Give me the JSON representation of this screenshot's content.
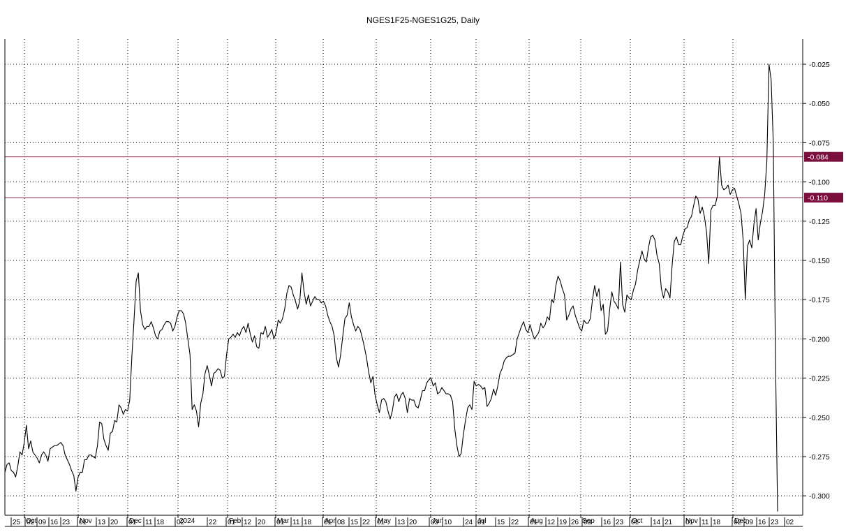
{
  "title": "NGES1F25-NGES1G25, Daily",
  "colors": {
    "line": "#000000",
    "grid": "#000000",
    "marker_line": "#8b2a52",
    "marker_fill": "#7a0f3d",
    "marker_text": "#ffffff"
  },
  "chart_data": {
    "type": "line",
    "title": "NGES1F25-NGES1G25, Daily",
    "xlabel": "",
    "ylabel": "",
    "ylim": [
      -0.31,
      -0.01
    ],
    "y_ticks": [
      "-0.025",
      "-0.050",
      "-0.075",
      "-0.100",
      "-0.125",
      "-0.150",
      "-0.175",
      "-0.200",
      "-0.225",
      "-0.250",
      "-0.275",
      "-0.300"
    ],
    "grid": true,
    "month_labels": [
      "Oct",
      "Nov",
      "Dec",
      "2024",
      "Feb",
      "Mar",
      "Apr",
      "May",
      "Jun",
      "Jul",
      "Aug",
      "Sep",
      "Oct",
      "Nov",
      "Dec"
    ],
    "day_labels": [
      "25",
      "02",
      "09",
      "16",
      "23",
      "01",
      "13",
      "20",
      "01",
      "11",
      "18",
      "02",
      "22",
      "01",
      "12",
      "20",
      "01",
      "11",
      "18",
      "01",
      "08",
      "15",
      "22",
      "01",
      "13",
      "20",
      "03",
      "10",
      "24",
      "01",
      "15",
      "22",
      "01",
      "12",
      "19",
      "26",
      "03",
      "16",
      "23",
      "01",
      "14",
      "21",
      "01",
      "11",
      "18",
      "02",
      "09",
      "16",
      "23",
      "02"
    ],
    "horizontal_markers": [
      {
        "label": "-0.084",
        "value": -0.084
      },
      {
        "label": "-0.110",
        "value": -0.11
      }
    ],
    "series": [
      {
        "values": [
          -0.285,
          -0.28,
          -0.279,
          -0.284,
          -0.285,
          -0.288,
          -0.281,
          -0.272,
          -0.274,
          -0.266,
          -0.255,
          -0.27,
          -0.265,
          -0.272,
          -0.274,
          -0.276,
          -0.279,
          -0.274,
          -0.272,
          -0.274,
          -0.278,
          -0.27,
          -0.269,
          -0.268,
          -0.268,
          -0.267,
          -0.266,
          -0.268,
          -0.274,
          -0.277,
          -0.28,
          -0.284,
          -0.287,
          -0.297,
          -0.288,
          -0.285,
          -0.285,
          -0.277,
          -0.277,
          -0.274,
          -0.274,
          -0.275,
          -0.276,
          -0.268,
          -0.253,
          -0.254,
          -0.264,
          -0.268,
          -0.271,
          -0.26,
          -0.259,
          -0.252,
          -0.253,
          -0.242,
          -0.244,
          -0.248,
          -0.245,
          -0.246,
          -0.239,
          -0.211,
          -0.188,
          -0.163,
          -0.158,
          -0.182,
          -0.191,
          -0.194,
          -0.192,
          -0.192,
          -0.189,
          -0.193,
          -0.198,
          -0.2,
          -0.195,
          -0.194,
          -0.191,
          -0.189,
          -0.189,
          -0.19,
          -0.195,
          -0.192,
          -0.186,
          -0.182,
          -0.182,
          -0.184,
          -0.19,
          -0.2,
          -0.21,
          -0.245,
          -0.242,
          -0.246,
          -0.256,
          -0.241,
          -0.235,
          -0.222,
          -0.217,
          -0.223,
          -0.23,
          -0.222,
          -0.221,
          -0.219,
          -0.22,
          -0.225,
          -0.224,
          -0.21,
          -0.2,
          -0.199,
          -0.197,
          -0.199,
          -0.196,
          -0.198,
          -0.194,
          -0.192,
          -0.196,
          -0.19,
          -0.197,
          -0.202,
          -0.198,
          -0.205,
          -0.206,
          -0.196,
          -0.197,
          -0.192,
          -0.199,
          -0.197,
          -0.194,
          -0.2,
          -0.196,
          -0.188,
          -0.19,
          -0.187,
          -0.181,
          -0.171,
          -0.166,
          -0.167,
          -0.172,
          -0.176,
          -0.181,
          -0.176,
          -0.158,
          -0.17,
          -0.178,
          -0.172,
          -0.179,
          -0.176,
          -0.173,
          -0.175,
          -0.175,
          -0.177,
          -0.176,
          -0.179,
          -0.185,
          -0.189,
          -0.192,
          -0.198,
          -0.212,
          -0.218,
          -0.21,
          -0.198,
          -0.187,
          -0.185,
          -0.177,
          -0.186,
          -0.191,
          -0.195,
          -0.192,
          -0.194,
          -0.199,
          -0.205,
          -0.212,
          -0.221,
          -0.228,
          -0.224,
          -0.236,
          -0.242,
          -0.247,
          -0.239,
          -0.238,
          -0.24,
          -0.246,
          -0.251,
          -0.246,
          -0.237,
          -0.235,
          -0.24,
          -0.236,
          -0.234,
          -0.238,
          -0.247,
          -0.238,
          -0.239,
          -0.239,
          -0.243,
          -0.244,
          -0.239,
          -0.233,
          -0.233,
          -0.228,
          -0.226,
          -0.225,
          -0.23,
          -0.228,
          -0.235,
          -0.234,
          -0.231,
          -0.233,
          -0.235,
          -0.235,
          -0.236,
          -0.24,
          -0.257,
          -0.268,
          -0.275,
          -0.273,
          -0.261,
          -0.252,
          -0.244,
          -0.242,
          -0.245,
          -0.227,
          -0.23,
          -0.229,
          -0.23,
          -0.232,
          -0.231,
          -0.243,
          -0.241,
          -0.238,
          -0.232,
          -0.236,
          -0.23,
          -0.222,
          -0.219,
          -0.214,
          -0.212,
          -0.211,
          -0.211,
          -0.21,
          -0.209,
          -0.2,
          -0.196,
          -0.192,
          -0.189,
          -0.194,
          -0.196,
          -0.191,
          -0.196,
          -0.2,
          -0.198,
          -0.196,
          -0.19,
          -0.193,
          -0.191,
          -0.186,
          -0.188,
          -0.175,
          -0.177,
          -0.166,
          -0.16,
          -0.163,
          -0.168,
          -0.172,
          -0.188,
          -0.185,
          -0.181,
          -0.179,
          -0.185,
          -0.189,
          -0.193,
          -0.195,
          -0.188,
          -0.19,
          -0.19,
          -0.187,
          -0.175,
          -0.166,
          -0.173,
          -0.168,
          -0.182,
          -0.178,
          -0.197,
          -0.195,
          -0.181,
          -0.17,
          -0.176,
          -0.178,
          -0.181,
          -0.151,
          -0.178,
          -0.183,
          -0.172,
          -0.174,
          -0.175,
          -0.169,
          -0.165,
          -0.156,
          -0.15,
          -0.144,
          -0.149,
          -0.151,
          -0.142,
          -0.135,
          -0.134,
          -0.137,
          -0.147,
          -0.152,
          -0.168,
          -0.174,
          -0.168,
          -0.17,
          -0.174,
          -0.153,
          -0.138,
          -0.135,
          -0.14,
          -0.14,
          -0.134,
          -0.13,
          -0.129,
          -0.124,
          -0.122,
          -0.115,
          -0.109,
          -0.111,
          -0.12,
          -0.116,
          -0.122,
          -0.132,
          -0.152,
          -0.118,
          -0.115,
          -0.115,
          -0.109,
          -0.084,
          -0.102,
          -0.105,
          -0.104,
          -0.102,
          -0.108,
          -0.105,
          -0.104,
          -0.109,
          -0.114,
          -0.12,
          -0.137,
          -0.175,
          -0.141,
          -0.137,
          -0.142,
          -0.127,
          -0.117,
          -0.137,
          -0.126,
          -0.119,
          -0.108,
          -0.087,
          -0.025,
          -0.035,
          -0.075,
          -0.21,
          -0.31
        ]
      }
    ]
  }
}
